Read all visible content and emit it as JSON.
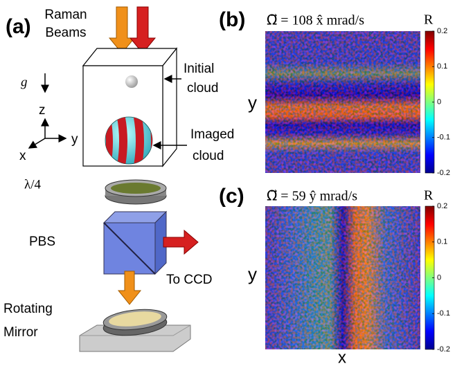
{
  "panel_a": {
    "label": "(a)",
    "raman_beams": [
      "Raman",
      "Beams"
    ],
    "gravity": "g⃗",
    "axes": {
      "z": "z",
      "y": "y",
      "x": "x"
    },
    "initial_cloud": [
      "Initial",
      "cloud"
    ],
    "imaged_cloud": [
      "Imaged",
      "cloud"
    ],
    "waveplate": "λ/4",
    "pbs": "PBS",
    "to_ccd": "To CCD",
    "mirror": [
      "Rotating",
      "Mirror"
    ]
  },
  "panel_b": {
    "label": "(b)",
    "title": "Ω⃗ = 108 x̂ mrad/s",
    "ylabel": "y",
    "colorbar": {
      "label": "R",
      "lim": [
        -0.2,
        0.2
      ],
      "ticks": [
        0.2,
        0.1,
        0,
        -0.1,
        -0.2
      ]
    }
  },
  "panel_c": {
    "label": "(c)",
    "title": "Ω⃗ = 59 ŷ mrad/s",
    "ylabel": "y",
    "xlabel": "x",
    "colorbar": {
      "label": "R",
      "lim": [
        -0.2,
        0.2
      ],
      "ticks": [
        0.2,
        0.1,
        0,
        -0.1,
        -0.2
      ]
    }
  }
}
